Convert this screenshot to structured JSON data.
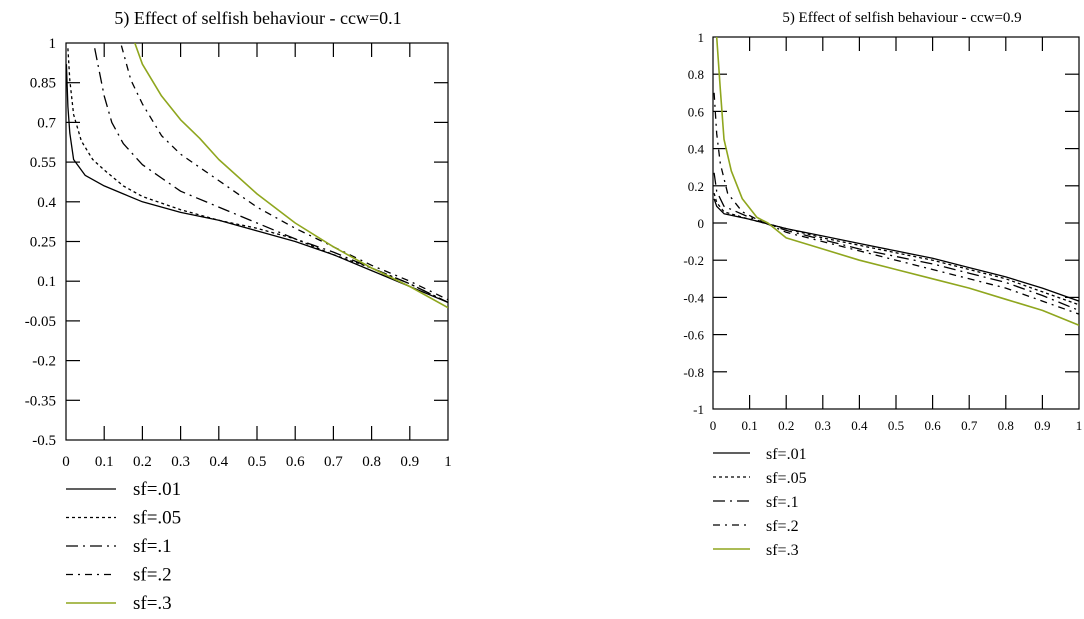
{
  "colors": {
    "black_series": "#000000",
    "green_series": "#8fa61e"
  },
  "chart_data": [
    {
      "type": "line",
      "title": "5) Effect of selfish behaviour - ccw=0.1",
      "xlabel": "",
      "ylabel": "",
      "xlim": [
        0,
        1
      ],
      "ylim": [
        -0.5,
        1
      ],
      "x_ticks": [
        "0",
        "0.1",
        "0.2",
        "0.3",
        "0.4",
        "0.5",
        "0.6",
        "0.7",
        "0.8",
        "0.9",
        "1"
      ],
      "y_ticks": [
        "1",
        "0.85",
        "0.7",
        "0.55",
        "0.4",
        "0.25",
        "0.1",
        "-0.05",
        "-0.2",
        "-0.35",
        "-0.5"
      ],
      "legend_position": "bottom-left",
      "series": [
        {
          "name": "sf=.01",
          "style": "solid",
          "color": "#000000",
          "points": [
            [
              0.001,
              0.92
            ],
            [
              0.005,
              0.76
            ],
            [
              0.01,
              0.66
            ],
            [
              0.02,
              0.56
            ],
            [
              0.05,
              0.5
            ],
            [
              0.1,
              0.46
            ],
            [
              0.15,
              0.43
            ],
            [
              0.2,
              0.4
            ],
            [
              0.3,
              0.36
            ],
            [
              0.4,
              0.33
            ],
            [
              0.5,
              0.29
            ],
            [
              0.6,
              0.25
            ],
            [
              0.7,
              0.2
            ],
            [
              0.8,
              0.14
            ],
            [
              0.9,
              0.08
            ],
            [
              1.0,
              0.02
            ]
          ]
        },
        {
          "name": "sf=.05",
          "style": "dotted",
          "color": "#000000",
          "points": [
            [
              0.005,
              0.98
            ],
            [
              0.01,
              0.86
            ],
            [
              0.02,
              0.73
            ],
            [
              0.04,
              0.63
            ],
            [
              0.07,
              0.56
            ],
            [
              0.1,
              0.52
            ],
            [
              0.15,
              0.46
            ],
            [
              0.2,
              0.42
            ],
            [
              0.3,
              0.37
            ],
            [
              0.4,
              0.33
            ],
            [
              0.5,
              0.3
            ],
            [
              0.6,
              0.26
            ],
            [
              0.7,
              0.2
            ],
            [
              0.8,
              0.15
            ],
            [
              0.9,
              0.09
            ],
            [
              1.0,
              0.02
            ]
          ]
        },
        {
          "name": "sf=.1",
          "style": "longdash-dot",
          "color": "#000000",
          "points": [
            [
              0.075,
              0.98
            ],
            [
              0.1,
              0.8
            ],
            [
              0.12,
              0.7
            ],
            [
              0.15,
              0.62
            ],
            [
              0.2,
              0.54
            ],
            [
              0.25,
              0.49
            ],
            [
              0.3,
              0.44
            ],
            [
              0.4,
              0.38
            ],
            [
              0.5,
              0.32
            ],
            [
              0.6,
              0.26
            ],
            [
              0.7,
              0.21
            ],
            [
              0.8,
              0.15
            ],
            [
              0.9,
              0.09
            ],
            [
              1.0,
              0.02
            ]
          ]
        },
        {
          "name": "sf=.2",
          "style": "dash-dot",
          "color": "#000000",
          "points": [
            [
              0.145,
              0.99
            ],
            [
              0.17,
              0.86
            ],
            [
              0.2,
              0.77
            ],
            [
              0.25,
              0.65
            ],
            [
              0.3,
              0.58
            ],
            [
              0.4,
              0.48
            ],
            [
              0.5,
              0.38
            ],
            [
              0.6,
              0.3
            ],
            [
              0.7,
              0.23
            ],
            [
              0.8,
              0.16
            ],
            [
              0.9,
              0.1
            ],
            [
              1.0,
              0.03
            ]
          ]
        },
        {
          "name": "sf=.3",
          "style": "solid",
          "color": "#8fa61e",
          "points": [
            [
              0.18,
              1.0
            ],
            [
              0.2,
              0.92
            ],
            [
              0.25,
              0.8
            ],
            [
              0.3,
              0.71
            ],
            [
              0.35,
              0.64
            ],
            [
              0.4,
              0.56
            ],
            [
              0.5,
              0.43
            ],
            [
              0.6,
              0.32
            ],
            [
              0.7,
              0.23
            ],
            [
              0.8,
              0.15
            ],
            [
              0.9,
              0.08
            ],
            [
              1.0,
              0.0
            ]
          ]
        }
      ]
    },
    {
      "type": "line",
      "title": "5) Effect of selfish behaviour - ccw=0.9",
      "xlabel": "",
      "ylabel": "",
      "xlim": [
        0,
        1
      ],
      "ylim": [
        -1,
        1
      ],
      "x_ticks": [
        "0",
        "0.1",
        "0.2",
        "0.3",
        "0.4",
        "0.5",
        "0.6",
        "0.7",
        "0.8",
        "0.9",
        "1"
      ],
      "y_ticks": [
        "1",
        "0.8",
        "0.6",
        "0.4",
        "0.2",
        "0",
        "-0.2",
        "-0.4",
        "-0.6",
        "-0.8",
        "-1"
      ],
      "legend_position": "bottom-left",
      "series": [
        {
          "name": "sf=.01",
          "style": "solid",
          "color": "#000000",
          "points": [
            [
              0.003,
              0.13
            ],
            [
              0.01,
              0.09
            ],
            [
              0.03,
              0.05
            ],
            [
              0.1,
              0.02
            ],
            [
              0.2,
              -0.03
            ],
            [
              0.3,
              -0.07
            ],
            [
              0.4,
              -0.11
            ],
            [
              0.5,
              -0.15
            ],
            [
              0.6,
              -0.19
            ],
            [
              0.7,
              -0.24
            ],
            [
              0.8,
              -0.29
            ],
            [
              0.9,
              -0.35
            ],
            [
              1.0,
              -0.42
            ]
          ]
        },
        {
          "name": "sf=.05",
          "style": "dotted",
          "color": "#000000",
          "points": [
            [
              0.003,
              0.16
            ],
            [
              0.01,
              0.11
            ],
            [
              0.03,
              0.06
            ],
            [
              0.1,
              0.02
            ],
            [
              0.2,
              -0.03
            ],
            [
              0.3,
              -0.08
            ],
            [
              0.4,
              -0.12
            ],
            [
              0.5,
              -0.16
            ],
            [
              0.6,
              -0.2
            ],
            [
              0.7,
              -0.25
            ],
            [
              0.8,
              -0.3
            ],
            [
              0.9,
              -0.37
            ],
            [
              1.0,
              -0.44
            ]
          ]
        },
        {
          "name": "sf=.1",
          "style": "longdash-dot",
          "color": "#000000",
          "points": [
            [
              0.003,
              0.27
            ],
            [
              0.01,
              0.17
            ],
            [
              0.03,
              0.09
            ],
            [
              0.1,
              0.03
            ],
            [
              0.2,
              -0.04
            ],
            [
              0.3,
              -0.09
            ],
            [
              0.4,
              -0.14
            ],
            [
              0.5,
              -0.18
            ],
            [
              0.6,
              -0.22
            ],
            [
              0.7,
              -0.27
            ],
            [
              0.8,
              -0.32
            ],
            [
              0.9,
              -0.39
            ],
            [
              1.0,
              -0.47
            ]
          ]
        },
        {
          "name": "sf=.2",
          "style": "dash-dot",
          "color": "#000000",
          "points": [
            [
              0.003,
              0.7
            ],
            [
              0.01,
              0.48
            ],
            [
              0.02,
              0.32
            ],
            [
              0.04,
              0.16
            ],
            [
              0.08,
              0.06
            ],
            [
              0.12,
              0.02
            ],
            [
              0.2,
              -0.05
            ],
            [
              0.3,
              -0.1
            ],
            [
              0.4,
              -0.15
            ],
            [
              0.5,
              -0.2
            ],
            [
              0.6,
              -0.25
            ],
            [
              0.7,
              -0.3
            ],
            [
              0.8,
              -0.35
            ],
            [
              0.9,
              -0.42
            ],
            [
              1.0,
              -0.49
            ]
          ]
        },
        {
          "name": "sf=.3",
          "style": "solid",
          "color": "#8fa61e",
          "points": [
            [
              0.01,
              1.0
            ],
            [
              0.02,
              0.72
            ],
            [
              0.03,
              0.45
            ],
            [
              0.05,
              0.28
            ],
            [
              0.08,
              0.13
            ],
            [
              0.12,
              0.03
            ],
            [
              0.15,
              0.0
            ],
            [
              0.2,
              -0.08
            ],
            [
              0.3,
              -0.14
            ],
            [
              0.4,
              -0.2
            ],
            [
              0.5,
              -0.25
            ],
            [
              0.6,
              -0.3
            ],
            [
              0.7,
              -0.35
            ],
            [
              0.8,
              -0.41
            ],
            [
              0.9,
              -0.47
            ],
            [
              1.0,
              -0.55
            ]
          ]
        }
      ]
    }
  ]
}
